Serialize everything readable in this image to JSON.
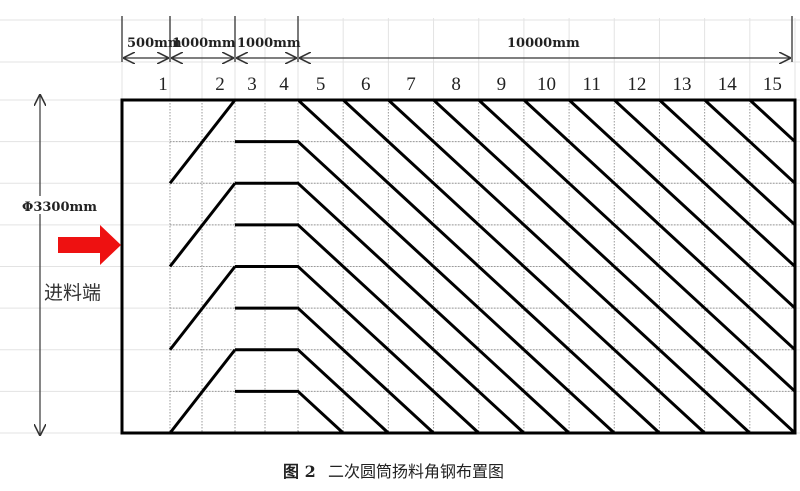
{
  "diagram": {
    "dimensions": [
      {
        "label": "500mm"
      },
      {
        "label": "1000mm"
      },
      {
        "label": "1000mm"
      },
      {
        "label": "10000mm"
      }
    ],
    "column_numbers": [
      "1",
      "2",
      "3",
      "4",
      "5",
      "6",
      "7",
      "8",
      "9",
      "10",
      "11",
      "12",
      "13",
      "14",
      "15"
    ],
    "diameter_label": "Φ3300mm",
    "inlet_label": "进料端",
    "arrow_color": "#ee1111",
    "caption_number": "图 2",
    "caption_text": "二次圆筒扬料角钢布置图"
  }
}
